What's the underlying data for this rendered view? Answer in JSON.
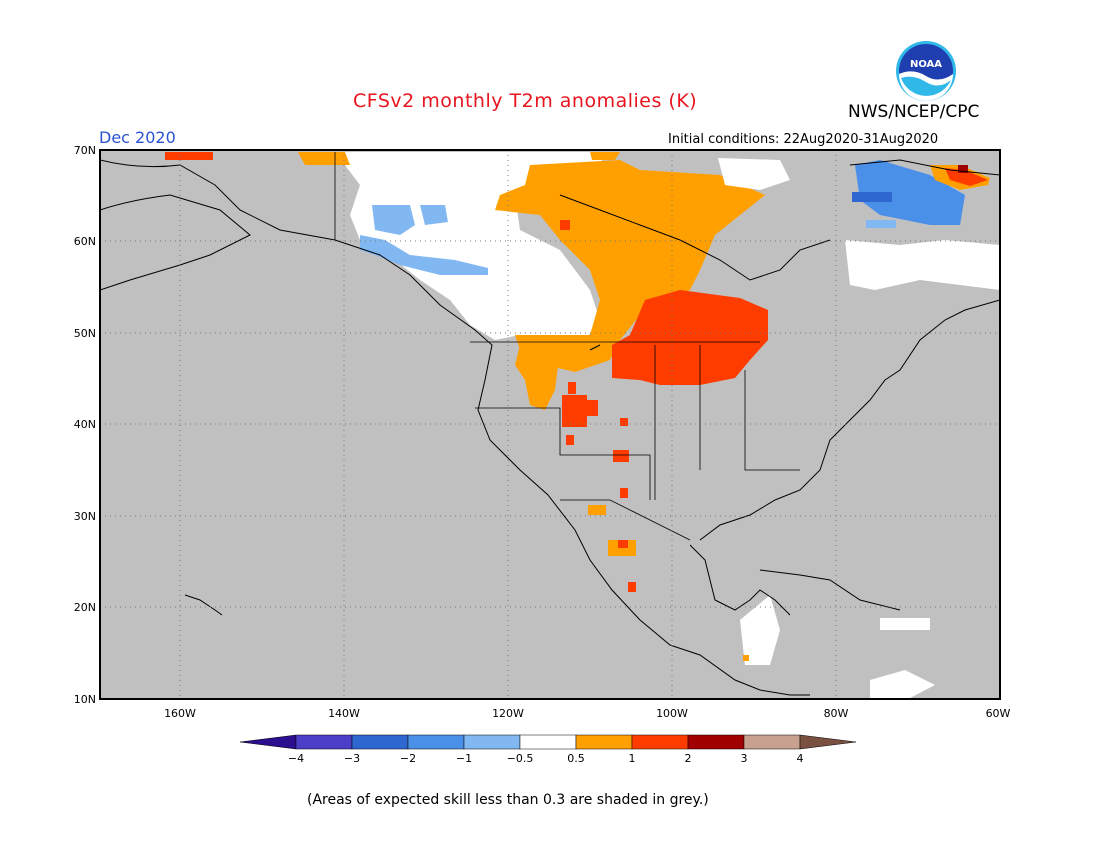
{
  "header": {
    "title": "CFSv2 monthly T2m anomalies (K)",
    "agency": "NWS/NCEP/CPC",
    "logo_text": "NOAA",
    "period": "Dec 2020",
    "initial_conditions": "Initial conditions: 22Aug2020-31Aug2020"
  },
  "map": {
    "lat_labels": [
      "70N",
      "60N",
      "50N",
      "40N",
      "30N",
      "20N",
      "10N"
    ],
    "lon_labels": [
      "160W",
      "140W",
      "120W",
      "100W",
      "80W",
      "60W"
    ],
    "background_color": "#c0c0c0"
  },
  "colorbar": {
    "tick_labels": [
      "−4",
      "−3",
      "−2",
      "−1",
      "−0.5",
      "0.5",
      "1",
      "2",
      "3",
      "4"
    ],
    "colors": [
      "#2c0f8f",
      "#4b3fc8",
      "#2e67d0",
      "#4a90e8",
      "#82b8f2",
      "#ffffff",
      "#ffa000",
      "#ff3c00",
      "#a00000",
      "#c8a090",
      "#7a5040"
    ]
  },
  "footnote": "(Areas of expected skill less than 0.3 are shaded in grey.)"
}
